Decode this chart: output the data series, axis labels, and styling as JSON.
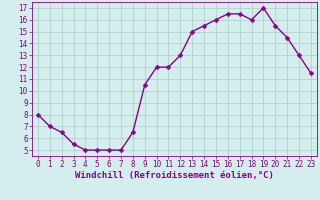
{
  "x": [
    0,
    1,
    2,
    3,
    4,
    5,
    6,
    7,
    8,
    9,
    10,
    11,
    12,
    13,
    14,
    15,
    16,
    17,
    18,
    19,
    20,
    21,
    22,
    23
  ],
  "y": [
    8,
    7,
    6.5,
    5.5,
    5,
    5,
    5,
    5,
    6.5,
    10.5,
    12,
    12,
    13,
    15,
    15.5,
    16,
    16.5,
    16.5,
    16,
    17,
    15.5,
    14.5,
    13,
    11.5
  ],
  "line_color": "#880088",
  "marker": "D",
  "marker_size": 2.5,
  "bg_color": "#d4eeee",
  "grid_color": "#aacccc",
  "xlabel": "Windchill (Refroidissement éolien,°C)",
  "xlim": [
    -0.5,
    23.5
  ],
  "ylim": [
    4.5,
    17.5
  ],
  "yticks": [
    5,
    6,
    7,
    8,
    9,
    10,
    11,
    12,
    13,
    14,
    15,
    16,
    17
  ],
  "xticks": [
    0,
    1,
    2,
    3,
    4,
    5,
    6,
    7,
    8,
    9,
    10,
    11,
    12,
    13,
    14,
    15,
    16,
    17,
    18,
    19,
    20,
    21,
    22,
    23
  ],
  "tick_fontsize": 5.5,
  "xlabel_fontsize": 6.5,
  "line_width": 1.0
}
